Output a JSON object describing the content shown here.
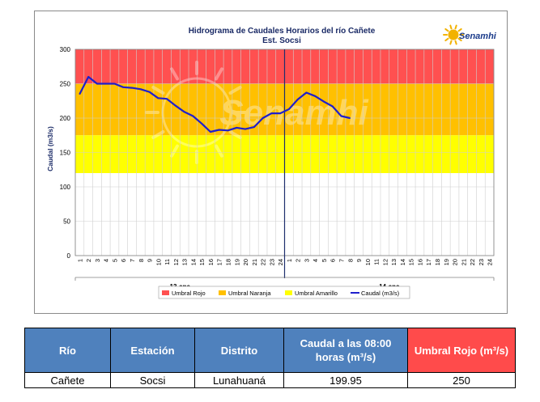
{
  "chart_data": {
    "type": "line",
    "title": "Hidrograma de Caudales Horarios del río Cañete",
    "subtitle": "Est. Socsi",
    "ylabel": "Caudal  (m3/s)",
    "ylim": [
      0,
      300
    ],
    "yticks": [
      0,
      50,
      100,
      150,
      200,
      250,
      300
    ],
    "xticks": [
      "1",
      "2",
      "3",
      "4",
      "5",
      "6",
      "7",
      "8",
      "9",
      "10",
      "11",
      "12",
      "13",
      "14",
      "15",
      "16",
      "17",
      "18",
      "19",
      "20",
      "21",
      "22",
      "23",
      "24",
      "1",
      "2",
      "3",
      "4",
      "5",
      "6",
      "7",
      "8",
      "9",
      "10",
      "11",
      "12",
      "13",
      "14",
      "15",
      "16",
      "17",
      "18",
      "19",
      "20",
      "21",
      "22",
      "23",
      "24"
    ],
    "days": [
      "13-ene",
      "14-ene"
    ],
    "bands": [
      {
        "name": "Umbral Rojo",
        "from": 250,
        "to": 300,
        "color": "#ff5050"
      },
      {
        "name": "Umbral Naranja",
        "from": 175,
        "to": 250,
        "color": "#ffc000"
      },
      {
        "name": "Umbral Amarillo",
        "from": 120,
        "to": 175,
        "color": "#ffff00"
      }
    ],
    "series": [
      {
        "name": "Caudal (m3/s)",
        "color": "#1f1fcc",
        "values": [
          235,
          260,
          250,
          250,
          250,
          245,
          244,
          242,
          238,
          229,
          228,
          218,
          209,
          203,
          192,
          180,
          183,
          182,
          186,
          184,
          187,
          200,
          207,
          207,
          213,
          227,
          237,
          232,
          224,
          217,
          203,
          200
        ]
      }
    ],
    "legend": [
      "Umbral Rojo",
      "Umbral Naranja",
      "Umbral Amarillo",
      "Caudal (m3/s)"
    ],
    "grid": true,
    "legend_position": "bottom"
  },
  "logo": {
    "text": "Senamhi"
  },
  "watermark": {
    "text": "Senamhi"
  },
  "table": {
    "headers": [
      "Río",
      "Estación",
      "Distrito",
      "Caudal a las 08:00 horas (m³/s)",
      "Umbral Rojo (m³/s)"
    ],
    "row": [
      "Cañete",
      "Socsi",
      "Lunahuaná",
      "199.95",
      "250"
    ]
  },
  "colors": {
    "header_blue": "#4f81bd",
    "header_red": "#ff4b4b"
  }
}
